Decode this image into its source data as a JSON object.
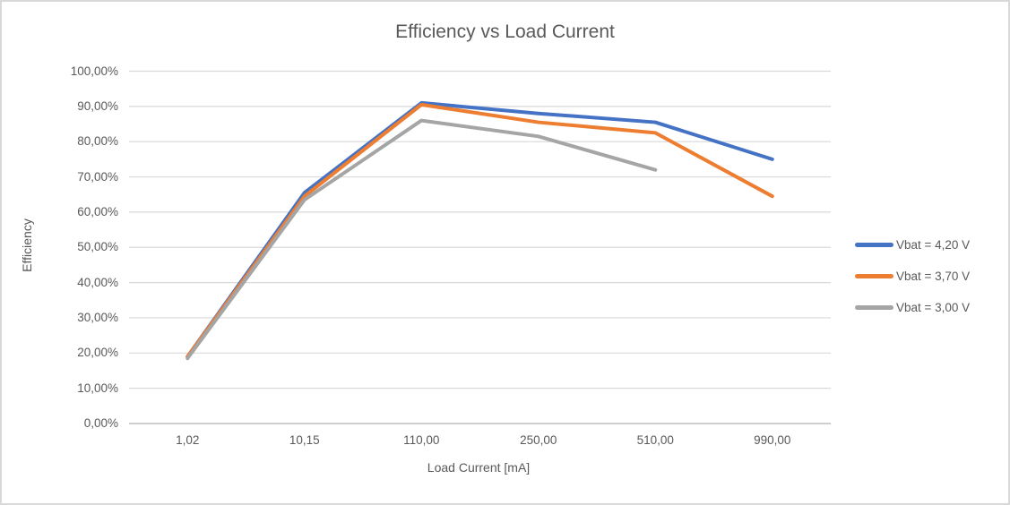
{
  "chart_data": {
    "type": "line",
    "title": "Efficiency vs Load Current",
    "xlabel": "Load Current [mA]",
    "ylabel": "Efficiency",
    "categories": [
      "1,02",
      "10,15",
      "110,00",
      "250,00",
      "510,00",
      "990,00"
    ],
    "series": [
      {
        "name": "Vbat = 4,20 V",
        "color": "#4472C4",
        "values": [
          19,
          65.5,
          91,
          88,
          85.5,
          75
        ]
      },
      {
        "name": "Vbat = 3,70 V",
        "color": "#ED7D31",
        "values": [
          19,
          64.5,
          90.5,
          85.5,
          82.5,
          64.5
        ]
      },
      {
        "name": "Vbat = 3,00 V",
        "color": "#A5A5A5",
        "values": [
          18.5,
          63.5,
          86,
          81.5,
          72,
          null
        ]
      }
    ],
    "y_ticks": [
      "0,00%",
      "10,00%",
      "20,00%",
      "30,00%",
      "40,00%",
      "50,00%",
      "60,00%",
      "70,00%",
      "80,00%",
      "90,00%",
      "100,00%"
    ],
    "ylim": [
      0,
      100
    ],
    "grid": true,
    "legend_position": "right",
    "colors": {
      "gridline": "#D9D9D9",
      "axis_line": "#BFBFBF",
      "text": "#595959"
    }
  }
}
